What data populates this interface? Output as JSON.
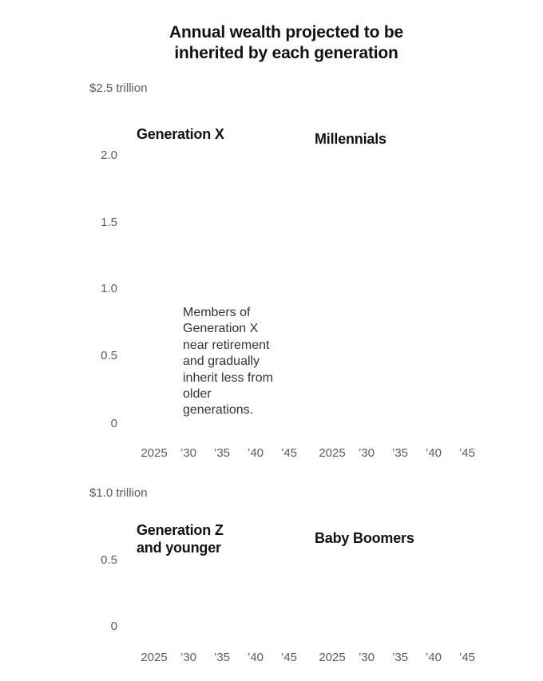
{
  "chart_data": [
    {
      "type": "area",
      "title": "Annual wealth projected to be inherited by each generation",
      "title_lines": [
        "Annual wealth projected to be",
        "inherited by each generation"
      ],
      "y_unit_label": "$2.5 trillion",
      "ylim": [
        0,
        2.5
      ],
      "y_ticks": [
        "0",
        "0.5",
        "1.0",
        "1.5",
        "2.0"
      ],
      "x_ticks": [
        "2025",
        "’30",
        "’35",
        "’40",
        "’45"
      ],
      "grid": false,
      "panels": [
        {
          "name": "Generation X",
          "title_lines": [
            "Generation X"
          ],
          "annotation_lines": [
            "Members of",
            "Generation X",
            "near retirement",
            "and gradually",
            "inherit less from",
            "older",
            "generations."
          ]
        },
        {
          "name": "Millennials",
          "title_lines": [
            "Millennials"
          ]
        }
      ]
    },
    {
      "type": "area",
      "y_unit_label": "$1.0 trillion",
      "ylim": [
        0,
        1.0
      ],
      "y_ticks": [
        "0",
        "0.5"
      ],
      "x_ticks": [
        "2025",
        "’30",
        "’35",
        "’40",
        "’45"
      ],
      "grid": false,
      "panels": [
        {
          "name": "Generation Z and younger",
          "title_lines": [
            "Generation Z",
            "and younger"
          ]
        },
        {
          "name": "Baby Boomers",
          "title_lines": [
            "Baby Boomers"
          ]
        }
      ]
    }
  ]
}
